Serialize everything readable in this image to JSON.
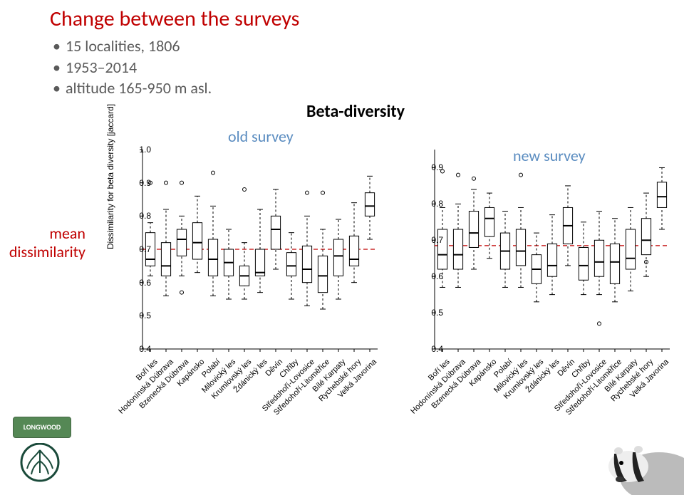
{
  "title": "Change between the surveys",
  "bullets": [
    "15 localities, 1806",
    "1953–2014",
    "altitude 165-950 m asl."
  ],
  "beta_label": "Beta-diversity",
  "old_label": "old survey",
  "new_label": "new survey",
  "mean_label": "mean dissimilarity",
  "yaxis_label": "Dissimilarity for beta diversity [jaccard]",
  "logo_text": "LONGWOOD",
  "charts": {
    "mean_line_color": "#c00000",
    "box_stroke": "#000000",
    "box_fill": "#ffffff",
    "whisker_dash": "3 3",
    "outlier_shape": "circle",
    "outlier_radius": 2.5,
    "tick_fontsize": 12,
    "xlab_fontsize": 11,
    "xlab_rotation": -45,
    "categories": [
      "Boří les",
      "Hodonínská Dúbrava",
      "Bzenecká Dúbrava",
      "Kapánsko",
      "Polabí",
      "Milovický les",
      "Krumlovský les",
      "Ždánický les",
      "Děvín",
      "Chřiby",
      "Středohoří-Lovosice",
      "Středohoří-Litoměřice",
      "Bílé Karpaty",
      "Rychebské hory",
      "Velká Javorina"
    ],
    "old": {
      "ylim": [
        0.4,
        1.0
      ],
      "yticks": [
        0.4,
        0.5,
        0.6,
        0.7,
        0.8,
        0.9,
        1.0
      ],
      "mean_line": 0.7,
      "show_yaxis_label": true,
      "boxes": [
        {
          "w_lo": 0.62,
          "q1": 0.65,
          "med": 0.67,
          "q3": 0.75,
          "w_hi": 0.78,
          "out": [
            0.9
          ]
        },
        {
          "w_lo": 0.56,
          "q1": 0.62,
          "med": 0.65,
          "q3": 0.72,
          "w_hi": 0.82,
          "out": [
            0.9
          ]
        },
        {
          "w_lo": 0.62,
          "q1": 0.68,
          "med": 0.73,
          "q3": 0.76,
          "w_hi": 0.8,
          "out": [
            0.57,
            0.9
          ]
        },
        {
          "w_lo": 0.63,
          "q1": 0.67,
          "med": 0.72,
          "q3": 0.78,
          "w_hi": 0.86,
          "out": []
        },
        {
          "w_lo": 0.56,
          "q1": 0.62,
          "med": 0.67,
          "q3": 0.73,
          "w_hi": 0.83,
          "out": [
            0.93
          ]
        },
        {
          "w_lo": 0.55,
          "q1": 0.62,
          "med": 0.66,
          "q3": 0.7,
          "w_hi": 0.76,
          "out": []
        },
        {
          "w_lo": 0.55,
          "q1": 0.59,
          "med": 0.62,
          "q3": 0.65,
          "w_hi": 0.72,
          "out": [
            0.88
          ]
        },
        {
          "w_lo": 0.57,
          "q1": 0.62,
          "med": 0.63,
          "q3": 0.7,
          "w_hi": 0.82,
          "out": []
        },
        {
          "w_lo": 0.64,
          "q1": 0.7,
          "med": 0.76,
          "q3": 0.8,
          "w_hi": 0.88,
          "out": []
        },
        {
          "w_lo": 0.55,
          "q1": 0.62,
          "med": 0.65,
          "q3": 0.69,
          "w_hi": 0.75,
          "out": []
        },
        {
          "w_lo": 0.53,
          "q1": 0.6,
          "med": 0.64,
          "q3": 0.71,
          "w_hi": 0.8,
          "out": [
            0.87
          ]
        },
        {
          "w_lo": 0.52,
          "q1": 0.57,
          "med": 0.62,
          "q3": 0.68,
          "w_hi": 0.76,
          "out": [
            0.87
          ]
        },
        {
          "w_lo": 0.55,
          "q1": 0.62,
          "med": 0.68,
          "q3": 0.73,
          "w_hi": 0.79,
          "out": []
        },
        {
          "w_lo": 0.6,
          "q1": 0.65,
          "med": 0.67,
          "q3": 0.74,
          "w_hi": 0.84,
          "out": []
        },
        {
          "w_lo": 0.73,
          "q1": 0.8,
          "med": 0.83,
          "q3": 0.87,
          "w_hi": 0.92,
          "out": []
        }
      ]
    },
    "new": {
      "ylim": [
        0.4,
        0.95
      ],
      "yticks": [
        0.4,
        0.5,
        0.6,
        0.7,
        0.8,
        0.9
      ],
      "mean_line": 0.685,
      "show_yaxis_label": false,
      "boxes": [
        {
          "w_lo": 0.57,
          "q1": 0.62,
          "med": 0.66,
          "q3": 0.73,
          "w_hi": 0.79,
          "out": [
            0.89
          ]
        },
        {
          "w_lo": 0.57,
          "q1": 0.62,
          "med": 0.66,
          "q3": 0.73,
          "w_hi": 0.8,
          "out": [
            0.88
          ]
        },
        {
          "w_lo": 0.62,
          "q1": 0.68,
          "med": 0.72,
          "q3": 0.78,
          "w_hi": 0.84,
          "out": [
            0.87
          ]
        },
        {
          "w_lo": 0.65,
          "q1": 0.71,
          "med": 0.76,
          "q3": 0.79,
          "w_hi": 0.83,
          "out": []
        },
        {
          "w_lo": 0.57,
          "q1": 0.62,
          "med": 0.67,
          "q3": 0.72,
          "w_hi": 0.78,
          "out": []
        },
        {
          "w_lo": 0.57,
          "q1": 0.63,
          "med": 0.67,
          "q3": 0.73,
          "w_hi": 0.79,
          "out": [
            0.88
          ]
        },
        {
          "w_lo": 0.53,
          "q1": 0.58,
          "med": 0.62,
          "q3": 0.66,
          "w_hi": 0.72,
          "out": []
        },
        {
          "w_lo": 0.55,
          "q1": 0.6,
          "med": 0.63,
          "q3": 0.69,
          "w_hi": 0.77,
          "out": []
        },
        {
          "w_lo": 0.63,
          "q1": 0.69,
          "med": 0.74,
          "q3": 0.79,
          "w_hi": 0.85,
          "out": []
        },
        {
          "w_lo": 0.55,
          "q1": 0.59,
          "med": 0.63,
          "q3": 0.68,
          "w_hi": 0.75,
          "out": []
        },
        {
          "w_lo": 0.55,
          "q1": 0.6,
          "med": 0.64,
          "q3": 0.7,
          "w_hi": 0.78,
          "out": [
            0.47
          ]
        },
        {
          "w_lo": 0.53,
          "q1": 0.58,
          "med": 0.64,
          "q3": 0.69,
          "w_hi": 0.76,
          "out": []
        },
        {
          "w_lo": 0.56,
          "q1": 0.62,
          "med": 0.65,
          "q3": 0.73,
          "w_hi": 0.79,
          "out": []
        },
        {
          "w_lo": 0.6,
          "q1": 0.66,
          "med": 0.7,
          "q3": 0.76,
          "w_hi": 0.83,
          "out": [
            0.64
          ]
        },
        {
          "w_lo": 0.73,
          "q1": 0.79,
          "med": 0.82,
          "q3": 0.86,
          "w_hi": 0.9,
          "out": []
        }
      ]
    }
  }
}
